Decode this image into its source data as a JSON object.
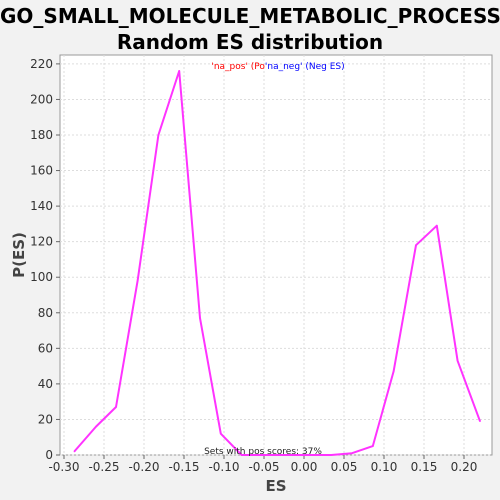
{
  "chart_data": {
    "type": "line",
    "title_line1": "GO_SMALL_MOLECULE_METABOLIC_PROCESS:",
    "title_line2": "Random ES distribution",
    "xlabel": "ES",
    "ylabel": "P(ES)",
    "xlim": [
      -0.305,
      0.235
    ],
    "ylim": [
      0,
      225
    ],
    "xticks": [
      -0.3,
      -0.25,
      -0.2,
      -0.15,
      -0.1,
      -0.05,
      0.0,
      0.05,
      0.1,
      0.15,
      0.2
    ],
    "xtick_labels": [
      "-0.30",
      "-0.25",
      "-0.20",
      "-0.15",
      "-0.10",
      "-0.05",
      "0.00",
      "0.05",
      "0.10",
      "0.15",
      "0.20"
    ],
    "yticks": [
      0,
      20,
      40,
      60,
      80,
      100,
      120,
      140,
      160,
      180,
      200,
      220
    ],
    "ytick_labels": [
      "0",
      "20",
      "40",
      "60",
      "80",
      "100",
      "120",
      "140",
      "160",
      "180",
      "200",
      "220"
    ],
    "grid": true,
    "legend": {
      "placement": "top-center",
      "items": [
        {
          "text": "'na_pos' (Po",
          "color": "#ff0000"
        },
        {
          "text": "'na_neg' (Neg ES)",
          "color": "#0000ff"
        }
      ]
    },
    "annotation": "Sets with pos scores: 37%",
    "series": [
      {
        "color": "#ff33ff",
        "x": [
          -0.287,
          -0.26,
          -0.235,
          -0.208,
          -0.182,
          -0.156,
          -0.13,
          -0.104,
          -0.078,
          -0.052,
          -0.026,
          0.0,
          0.034,
          0.06,
          0.086,
          0.112,
          0.14,
          0.166,
          0.192,
          0.22
        ],
        "y": [
          2,
          16,
          27,
          98,
          180,
          216,
          77,
          12,
          0,
          0,
          0,
          0,
          0,
          1,
          5,
          47,
          118,
          129,
          53,
          19
        ]
      }
    ]
  }
}
